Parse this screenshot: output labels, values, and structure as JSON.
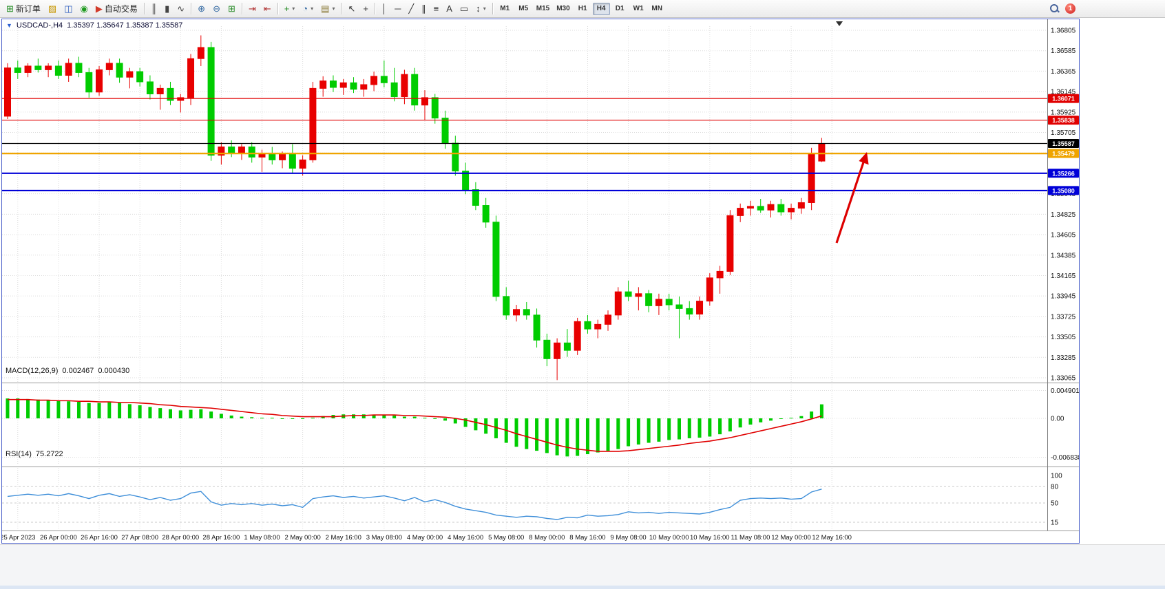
{
  "window": {
    "collapse_icon": "▼",
    "title": "USDCAD-,H4",
    "ohlc_text": "1.35397 1.35647 1.35387 1.35587"
  },
  "toolbar": {
    "buttons": [
      {
        "name": "new-order-button",
        "icon": "new-order-icon",
        "glyph": "⊞",
        "color": "#1f8a1f",
        "label": "新订单"
      },
      {
        "name": "new-chart-button",
        "icon": "new-chart-icon",
        "glyph": "▨",
        "color": "#c79600"
      },
      {
        "name": "profiles-button",
        "icon": "profiles-icon",
        "glyph": "◫",
        "color": "#2f5fbf"
      },
      {
        "name": "experts-button",
        "icon": "experts-icon",
        "glyph": "◉",
        "color": "#1f9a1f"
      },
      {
        "name": "autotrading-button",
        "icon": "autotrading-icon",
        "glyph": "▶",
        "color": "#d23a2a",
        "label": "自动交易"
      },
      {
        "sep": true
      },
      {
        "name": "bar-chart-button",
        "icon": "bar-chart-icon",
        "glyph": "║",
        "color": "#444444"
      },
      {
        "name": "candlestick-chart-button",
        "icon": "candlestick-icon",
        "glyph": "▮",
        "color": "#444444"
      },
      {
        "name": "line-chart-button",
        "icon": "line-chart-icon",
        "glyph": "∿",
        "color": "#444444"
      },
      {
        "sep": true
      },
      {
        "name": "zoom-in-button",
        "icon": "zoom-in-icon",
        "glyph": "⊕",
        "color": "#3a6ea5"
      },
      {
        "name": "zoom-out-button",
        "icon": "zoom-out-icon",
        "glyph": "⊖",
        "color": "#3a6ea5"
      },
      {
        "name": "tile-windows-button",
        "icon": "tile-windows-icon",
        "glyph": "⊞",
        "color": "#2f8f2f"
      },
      {
        "sep": true
      },
      {
        "name": "auto-scroll-button",
        "icon": "auto-scroll-icon",
        "glyph": "⇥",
        "color": "#b03030"
      },
      {
        "name": "chart-shift-button",
        "icon": "chart-shift-icon",
        "glyph": "⇤",
        "color": "#b03030"
      },
      {
        "sep": true
      },
      {
        "name": "indicators-button",
        "icon": "indicators-icon",
        "glyph": "+",
        "color": "#1f8a1f",
        "dropdown": true
      },
      {
        "name": "periods-button",
        "icon": "periods-icon",
        "glyph": "◔",
        "color": "#3a6ea5",
        "dropdown": true
      },
      {
        "name": "templates-button",
        "icon": "templates-icon",
        "glyph": "▤",
        "color": "#887733",
        "dropdown": true
      },
      {
        "sep": true
      },
      {
        "name": "cursor-button",
        "icon": "cursor-icon",
        "glyph": "↖",
        "color": "#333333"
      },
      {
        "name": "crosshair-button",
        "icon": "crosshair-icon",
        "glyph": "+",
        "color": "#333333"
      },
      {
        "sep": true
      },
      {
        "name": "vertical-line-button",
        "icon": "vertical-line-icon",
        "glyph": "│",
        "color": "#333333"
      },
      {
        "name": "horizontal-line-button",
        "icon": "horizontal-line-icon",
        "glyph": "─",
        "color": "#333333"
      },
      {
        "name": "trendline-button",
        "icon": "trendline-icon",
        "glyph": "╱",
        "color": "#333333"
      },
      {
        "name": "channel-button",
        "icon": "channel-icon",
        "glyph": "∥",
        "color": "#333333"
      },
      {
        "name": "fibonacci-button",
        "icon": "fibonacci-icon",
        "glyph": "≡",
        "color": "#333333"
      },
      {
        "name": "text-button",
        "icon": "text-icon",
        "glyph": "A",
        "color": "#333333"
      },
      {
        "name": "text-label-button",
        "icon": "text-label-icon",
        "glyph": "▭",
        "color": "#333333"
      },
      {
        "name": "arrows-button",
        "icon": "arrows-icon",
        "glyph": "↕",
        "color": "#333333",
        "dropdown": true
      },
      {
        "sep": true
      }
    ],
    "timeframes": [
      "M1",
      "M5",
      "M15",
      "M30",
      "H1",
      "H4",
      "D1",
      "W1",
      "MN"
    ],
    "active_timeframe": "H4",
    "notification_count": "1"
  },
  "chart_data": {
    "type": "candlestick",
    "symbol": "USDCAD-",
    "timeframe": "H4",
    "current": {
      "open": "1.35397",
      "high": "1.35647",
      "low": "1.35387",
      "close": "1.35587"
    },
    "colors": {
      "bull": "#e80000",
      "bear": "#00cc00",
      "grid": "#dcdcdc",
      "macd_hist": "#00cc00",
      "macd_signal": "#e00000",
      "rsi_line": "#3f8fd9",
      "arrow": "#dd0000"
    },
    "price_axis": {
      "min": 1.33065,
      "max": 1.36805,
      "labels": [
        "1.36805",
        "1.36585",
        "1.36365",
        "1.36145",
        "1.35925",
        "1.35705",
        "1.35485",
        "1.35265",
        "1.35045",
        "1.34825",
        "1.34605",
        "1.34385",
        "1.34165",
        "1.33945",
        "1.33725",
        "1.33505",
        "1.33285",
        "1.33065"
      ]
    },
    "time_axis": {
      "labels": [
        "25 Apr 2023",
        "26 Apr 00:00",
        "26 Apr 16:00",
        "27 Apr 08:00",
        "28 Apr 00:00",
        "28 Apr 16:00",
        "1 May 08:00",
        "2 May 00:00",
        "2 May 16:00",
        "3 May 08:00",
        "4 May 00:00",
        "4 May 16:00",
        "5 May 08:00",
        "8 May 00:00",
        "8 May 16:00",
        "9 May 08:00",
        "10 May 00:00",
        "10 May 16:00",
        "11 May 08:00",
        "12 May 00:00",
        "12 May 16:00"
      ]
    },
    "hlines": [
      {
        "price": 1.36071,
        "label": "1.36071",
        "color": "#e00000",
        "width": 1.2
      },
      {
        "price": 1.35838,
        "label": "1.35838",
        "color": "#e00000",
        "width": 1.2
      },
      {
        "price": 1.35587,
        "label": "1.35587",
        "color": "#000000",
        "width": 1.2
      },
      {
        "price": 1.35479,
        "label": "1.35479",
        "color": "#efa400",
        "width": 2.4
      },
      {
        "price": 1.35266,
        "label": "1.35266",
        "color": "#0000d8",
        "width": 2.2
      },
      {
        "price": 1.3508,
        "label": "1.35080",
        "color": "#0000d8",
        "width": 2.2
      }
    ],
    "candles": [
      [
        1.3588,
        1.3645,
        1.3585,
        1.364
      ],
      [
        1.364,
        1.3648,
        1.3628,
        1.3635
      ],
      [
        1.3635,
        1.3645,
        1.363,
        1.3642
      ],
      [
        1.3642,
        1.365,
        1.3635,
        1.3638
      ],
      [
        1.3638,
        1.3645,
        1.363,
        1.3642
      ],
      [
        1.3642,
        1.3648,
        1.3628,
        1.3632
      ],
      [
        1.3632,
        1.365,
        1.3625,
        1.3645
      ],
      [
        1.3645,
        1.3652,
        1.363,
        1.3635
      ],
      [
        1.3635,
        1.364,
        1.3608,
        1.3614
      ],
      [
        1.3614,
        1.3642,
        1.361,
        1.3638
      ],
      [
        1.3638,
        1.365,
        1.3632,
        1.3645
      ],
      [
        1.3645,
        1.365,
        1.3624,
        1.363
      ],
      [
        1.363,
        1.364,
        1.3618,
        1.3636
      ],
      [
        1.3636,
        1.364,
        1.362,
        1.3625
      ],
      [
        1.3625,
        1.3632,
        1.3606,
        1.3612
      ],
      [
        1.3612,
        1.3622,
        1.3595,
        1.3618
      ],
      [
        1.3618,
        1.3625,
        1.36,
        1.3605
      ],
      [
        1.3605,
        1.3612,
        1.3592,
        1.3608
      ],
      [
        1.3608,
        1.3655,
        1.36,
        1.365
      ],
      [
        1.365,
        1.3675,
        1.3642,
        1.3662
      ],
      [
        1.3662,
        1.3668,
        1.354,
        1.3546
      ],
      [
        1.3546,
        1.356,
        1.3536,
        1.3555
      ],
      [
        1.3555,
        1.3562,
        1.3544,
        1.3549
      ],
      [
        1.3549,
        1.3558,
        1.3541,
        1.3555
      ],
      [
        1.3555,
        1.356,
        1.3538,
        1.3544
      ],
      [
        1.3544,
        1.3552,
        1.3528,
        1.3548
      ],
      [
        1.3548,
        1.3555,
        1.3536,
        1.3541
      ],
      [
        1.3541,
        1.355,
        1.3532,
        1.3547
      ],
      [
        1.3547,
        1.3558,
        1.3526,
        1.3532
      ],
      [
        1.3532,
        1.3546,
        1.3524,
        1.3541
      ],
      [
        1.3541,
        1.3625,
        1.3538,
        1.3618
      ],
      [
        1.3618,
        1.3631,
        1.3609,
        1.3626
      ],
      [
        1.3626,
        1.3632,
        1.3614,
        1.3619
      ],
      [
        1.3619,
        1.3628,
        1.3611,
        1.3624
      ],
      [
        1.3624,
        1.363,
        1.3613,
        1.3617
      ],
      [
        1.3617,
        1.3628,
        1.3609,
        1.3622
      ],
      [
        1.3622,
        1.3636,
        1.3615,
        1.3631
      ],
      [
        1.3631,
        1.3648,
        1.3619,
        1.3624
      ],
      [
        1.3624,
        1.364,
        1.3604,
        1.3609
      ],
      [
        1.3609,
        1.3638,
        1.3601,
        1.3633
      ],
      [
        1.3633,
        1.364,
        1.3594,
        1.36
      ],
      [
        1.36,
        1.3616,
        1.3584,
        1.3608
      ],
      [
        1.3608,
        1.3612,
        1.358,
        1.3586
      ],
      [
        1.3586,
        1.3594,
        1.3553,
        1.3559
      ],
      [
        1.3559,
        1.3567,
        1.3524,
        1.3529
      ],
      [
        1.3529,
        1.3538,
        1.3504,
        1.3509
      ],
      [
        1.3509,
        1.3517,
        1.3487,
        1.3492
      ],
      [
        1.3492,
        1.35,
        1.3468,
        1.3474
      ],
      [
        1.3474,
        1.3481,
        1.3389,
        1.3394
      ],
      [
        1.3394,
        1.3404,
        1.3369,
        1.3374
      ],
      [
        1.3374,
        1.3385,
        1.3367,
        1.338
      ],
      [
        1.338,
        1.3388,
        1.3369,
        1.3374
      ],
      [
        1.3374,
        1.3381,
        1.3339,
        1.3347
      ],
      [
        1.3347,
        1.3354,
        1.3319,
        1.3327
      ],
      [
        1.3327,
        1.3349,
        1.3304,
        1.3344
      ],
      [
        1.3344,
        1.3359,
        1.3329,
        1.3336
      ],
      [
        1.3336,
        1.3371,
        1.3331,
        1.3367
      ],
      [
        1.3367,
        1.3374,
        1.3354,
        1.3359
      ],
      [
        1.3359,
        1.3369,
        1.3349,
        1.3364
      ],
      [
        1.3364,
        1.3379,
        1.3357,
        1.3374
      ],
      [
        1.3374,
        1.3404,
        1.3369,
        1.3399
      ],
      [
        1.3399,
        1.3411,
        1.3389,
        1.3394
      ],
      [
        1.3394,
        1.3404,
        1.3379,
        1.3397
      ],
      [
        1.3397,
        1.3401,
        1.3377,
        1.3384
      ],
      [
        1.3384,
        1.3397,
        1.3374,
        1.3391
      ],
      [
        1.3391,
        1.3397,
        1.3379,
        1.3385
      ],
      [
        1.3385,
        1.3394,
        1.3349,
        1.3381
      ],
      [
        1.3381,
        1.3389,
        1.3369,
        1.3375
      ],
      [
        1.3375,
        1.3394,
        1.3369,
        1.3389
      ],
      [
        1.3389,
        1.3419,
        1.3384,
        1.3414
      ],
      [
        1.3414,
        1.3427,
        1.3397,
        1.3421
      ],
      [
        1.3421,
        1.3487,
        1.3417,
        1.3481
      ],
      [
        1.3481,
        1.3494,
        1.3474,
        1.3489
      ],
      [
        1.3489,
        1.3497,
        1.3481,
        1.3491
      ],
      [
        1.3491,
        1.3499,
        1.3484,
        1.3487
      ],
      [
        1.3487,
        1.3497,
        1.3479,
        1.3493
      ],
      [
        1.3493,
        1.3499,
        1.3481,
        1.3485
      ],
      [
        1.3485,
        1.3494,
        1.3477,
        1.3489
      ],
      [
        1.3489,
        1.35,
        1.3483,
        1.3495
      ],
      [
        1.3495,
        1.3554,
        1.3487,
        1.3547
      ],
      [
        1.35397,
        1.35647,
        1.35387,
        1.35587
      ]
    ],
    "macd": {
      "label": "MACD(12,26,9)",
      "value": "0.002467",
      "signal_value": "0.000430",
      "scale": [
        "0.004901",
        "0.00",
        "-0.006838"
      ],
      "scale_values": [
        0.004901,
        0,
        -0.006838
      ],
      "histogram": [
        0.0035,
        0.0035,
        0.0034,
        0.0033,
        0.0032,
        0.0031,
        0.003,
        0.0029,
        0.0027,
        0.0027,
        0.0028,
        0.0027,
        0.0025,
        0.0023,
        0.002,
        0.0018,
        0.0016,
        0.0014,
        0.0015,
        0.0016,
        0.0012,
        0.0008,
        0.0005,
        0.0003,
        0.0002,
        0.0001,
        0.0001,
        0.0,
        0.0,
        -0.0001,
        0.0001,
        0.0004,
        0.0006,
        0.0007,
        0.0007,
        0.0007,
        0.0006,
        0.0006,
        0.0005,
        0.0003,
        0.0003,
        0.0001,
        -0.0001,
        -0.0004,
        -0.0009,
        -0.0015,
        -0.0021,
        -0.0027,
        -0.0035,
        -0.0043,
        -0.005,
        -0.0054,
        -0.0057,
        -0.0061,
        -0.0065,
        -0.0067,
        -0.0066,
        -0.0063,
        -0.006,
        -0.0057,
        -0.0054,
        -0.0049,
        -0.0046,
        -0.0043,
        -0.0041,
        -0.0038,
        -0.0037,
        -0.0035,
        -0.0034,
        -0.0032,
        -0.0028,
        -0.0023,
        -0.0016,
        -0.0011,
        -0.0007,
        -0.0004,
        -0.0001,
        0.0001,
        0.0004,
        0.0012,
        0.002467
      ],
      "signal": [
        0.0033,
        0.0033,
        0.0033,
        0.0032,
        0.0032,
        0.0031,
        0.0031,
        0.003,
        0.003,
        0.0029,
        0.0029,
        0.0028,
        0.0028,
        0.0027,
        0.0026,
        0.0024,
        0.0023,
        0.0021,
        0.002,
        0.0019,
        0.0018,
        0.0016,
        0.0014,
        0.0012,
        0.001,
        0.0008,
        0.0007,
        0.0005,
        0.0004,
        0.0003,
        0.0003,
        0.0003,
        0.0003,
        0.0004,
        0.0005,
        0.0005,
        0.0006,
        0.0006,
        0.0006,
        0.0005,
        0.0005,
        0.0004,
        0.0003,
        0.0002,
        0.0,
        -0.0003,
        -0.0007,
        -0.0011,
        -0.0016,
        -0.0021,
        -0.0027,
        -0.0032,
        -0.0037,
        -0.0042,
        -0.0047,
        -0.0051,
        -0.0054,
        -0.0056,
        -0.0058,
        -0.0058,
        -0.0058,
        -0.0057,
        -0.0055,
        -0.0053,
        -0.0051,
        -0.0049,
        -0.0047,
        -0.0044,
        -0.0042,
        -0.004,
        -0.0037,
        -0.0034,
        -0.003,
        -0.0026,
        -0.0022,
        -0.0018,
        -0.0014,
        -0.001,
        -0.0006,
        -0.0001,
        0.00043
      ]
    },
    "rsi": {
      "label": "RSI(14)",
      "value": "75.2722",
      "scale": [
        "100",
        "80",
        "50",
        "15"
      ],
      "levels": [
        80,
        50,
        15
      ],
      "values": [
        62,
        64,
        66,
        64,
        66,
        63,
        67,
        63,
        58,
        64,
        67,
        62,
        65,
        61,
        56,
        60,
        55,
        58,
        68,
        71,
        52,
        46,
        49,
        47,
        49,
        46,
        48,
        45,
        47,
        42,
        58,
        61,
        63,
        60,
        62,
        59,
        61,
        63,
        59,
        54,
        60,
        52,
        56,
        51,
        44,
        39,
        36,
        33,
        28,
        26,
        24,
        26,
        25,
        22,
        20,
        24,
        23,
        28,
        26,
        27,
        29,
        34,
        32,
        33,
        31,
        33,
        32,
        31,
        30,
        33,
        38,
        42,
        55,
        58,
        59,
        58,
        59,
        57,
        58,
        70,
        75.27
      ]
    }
  }
}
